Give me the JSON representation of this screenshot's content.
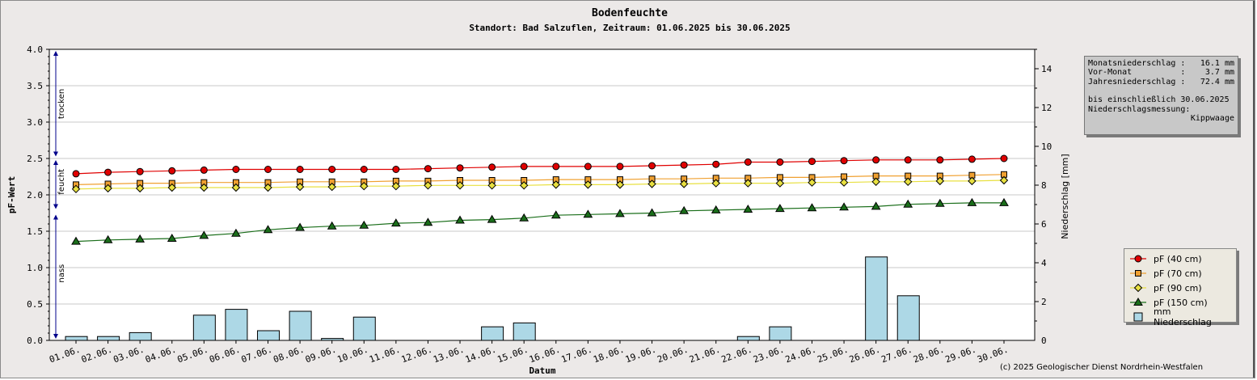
{
  "header": {
    "title": "Bodenfeuchte",
    "subtitle": "Standort: Bad Salzuflen, Zeitraum: 01.06.2025 bis 30.06.2025"
  },
  "info": {
    "monat_label": "Monatsniederschlag :",
    "monat_value": "16.1 mm",
    "vormonat_label": "Vor-Monat          :",
    "vormonat_value": "3.7 mm",
    "jahr_label": "Jahresniederschlag :",
    "jahr_value": "72.4 mm",
    "bis_text": "bis einschließlich 30.06.2025",
    "messung_label": "Niederschlagsmessung:",
    "messung_value": "Kippwaage"
  },
  "zones": {
    "trocken": "trocken",
    "feucht": "feucht",
    "nass": "nass"
  },
  "copyright": "(c) 2025 Geologischer Dienst Nordrhein-Westfalen",
  "colors": {
    "pf40": "#e00000",
    "pf70": "#f0a030",
    "pf90": "#e8e040",
    "pf150": "#1a6e1a",
    "rain": "#add8e6",
    "zone_arrow": "#00008b"
  },
  "chart_data": {
    "type": "line",
    "xlabel": "Datum",
    "ylabel": "pF-Wert",
    "y2label": "Niederschlag [mm]",
    "ylim": [
      0,
      4.0
    ],
    "y2lim": [
      0,
      15
    ],
    "yticks": [
      "0.0",
      "0.5",
      "1.0",
      "1.5",
      "2.0",
      "2.5",
      "3.0",
      "3.5",
      "4.0"
    ],
    "y2ticks": [
      "0",
      "2",
      "4",
      "6",
      "8",
      "10",
      "12",
      "14"
    ],
    "grid": true,
    "legend_position": "right",
    "categories": [
      "01.06.",
      "02.06.",
      "03.06.",
      "04.06.",
      "05.06.",
      "06.06.",
      "07.06.",
      "08.06.",
      "09.06.",
      "10.06.",
      "11.06.",
      "12.06.",
      "13.06.",
      "14.06.",
      "15.06.",
      "16.06.",
      "17.06.",
      "18.06.",
      "19.06.",
      "20.06.",
      "21.06.",
      "22.06.",
      "23.06.",
      "24.06.",
      "25.06.",
      "26.06.",
      "27.06.",
      "28.06.",
      "29.06.",
      "30.06."
    ],
    "series": [
      {
        "name": "pF (40 cm)",
        "marker": "circle",
        "color_key": "pf40",
        "values": [
          2.29,
          2.31,
          2.32,
          2.33,
          2.34,
          2.35,
          2.35,
          2.35,
          2.35,
          2.35,
          2.35,
          2.36,
          2.37,
          2.38,
          2.39,
          2.39,
          2.39,
          2.39,
          2.4,
          2.41,
          2.42,
          2.45,
          2.45,
          2.46,
          2.47,
          2.48,
          2.48,
          2.48,
          2.49,
          2.5
        ]
      },
      {
        "name": "pF (70 cm)",
        "marker": "square",
        "color_key": "pf70",
        "values": [
          2.14,
          2.15,
          2.16,
          2.16,
          2.17,
          2.17,
          2.17,
          2.18,
          2.18,
          2.18,
          2.19,
          2.19,
          2.2,
          2.2,
          2.2,
          2.21,
          2.21,
          2.21,
          2.22,
          2.22,
          2.23,
          2.23,
          2.24,
          2.24,
          2.25,
          2.26,
          2.26,
          2.26,
          2.27,
          2.28
        ]
      },
      {
        "name": "pF (90 cm)",
        "marker": "diamond",
        "color_key": "pf90",
        "values": [
          2.08,
          2.09,
          2.09,
          2.1,
          2.1,
          2.1,
          2.1,
          2.11,
          2.11,
          2.12,
          2.12,
          2.13,
          2.13,
          2.13,
          2.13,
          2.14,
          2.14,
          2.14,
          2.15,
          2.15,
          2.16,
          2.16,
          2.16,
          2.17,
          2.17,
          2.18,
          2.18,
          2.19,
          2.19,
          2.2
        ]
      },
      {
        "name": "pF (150 cm)",
        "marker": "triangle",
        "color_key": "pf150",
        "values": [
          1.36,
          1.38,
          1.39,
          1.4,
          1.44,
          1.47,
          1.52,
          1.55,
          1.57,
          1.58,
          1.61,
          1.62,
          1.65,
          1.66,
          1.68,
          1.72,
          1.73,
          1.74,
          1.75,
          1.78,
          1.79,
          1.8,
          1.81,
          1.82,
          1.83,
          1.84,
          1.87,
          1.88,
          1.89,
          1.89
        ]
      },
      {
        "name": "mm  Niederschlag",
        "type": "bar",
        "axis": "right",
        "color_key": "rain",
        "values": [
          0.2,
          0.2,
          0.4,
          0.0,
          1.3,
          1.6,
          0.5,
          1.5,
          0.1,
          1.2,
          0.0,
          0.0,
          0.0,
          0.7,
          0.9,
          0.0,
          0.0,
          0.0,
          0.0,
          0.0,
          0.0,
          0.2,
          0.7,
          0.0,
          0.0,
          4.3,
          2.3,
          0.0,
          0.0,
          0.0
        ]
      }
    ]
  }
}
